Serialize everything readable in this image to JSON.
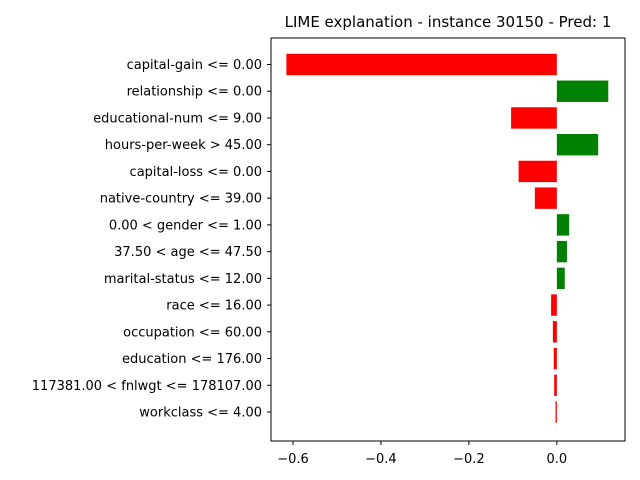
{
  "chart_data": {
    "type": "bar",
    "orientation": "horizontal",
    "title": "LIME explanation - instance 30150 - Pred: 1",
    "xlabel": "",
    "ylabel": "",
    "xlim": [
      -0.65,
      0.155
    ],
    "xticks": [
      -0.6,
      -0.4,
      -0.2,
      0.0
    ],
    "xtick_labels": [
      "−0.6",
      "−0.4",
      "−0.2",
      "0.0"
    ],
    "grid": false,
    "positive_color": "#008000",
    "negative_color": "#ff0000",
    "categories": [
      "capital-gain <= 0.00",
      "relationship <= 0.00",
      "educational-num <= 9.00",
      "hours-per-week > 45.00",
      "capital-loss <= 0.00",
      "native-country <= 39.00",
      "0.00 < gender <= 1.00",
      "37.50 < age <= 47.50",
      "marital-status <= 12.00",
      "race <= 16.00",
      "occupation <= 60.00",
      "education <= 176.00",
      "117381.00 < fnlwgt <= 178107.00",
      "workclass <= 4.00"
    ],
    "values": [
      -0.615,
      0.117,
      -0.104,
      0.094,
      -0.087,
      -0.05,
      0.028,
      0.023,
      0.018,
      -0.013,
      -0.009,
      -0.007,
      -0.006,
      -0.003
    ]
  }
}
